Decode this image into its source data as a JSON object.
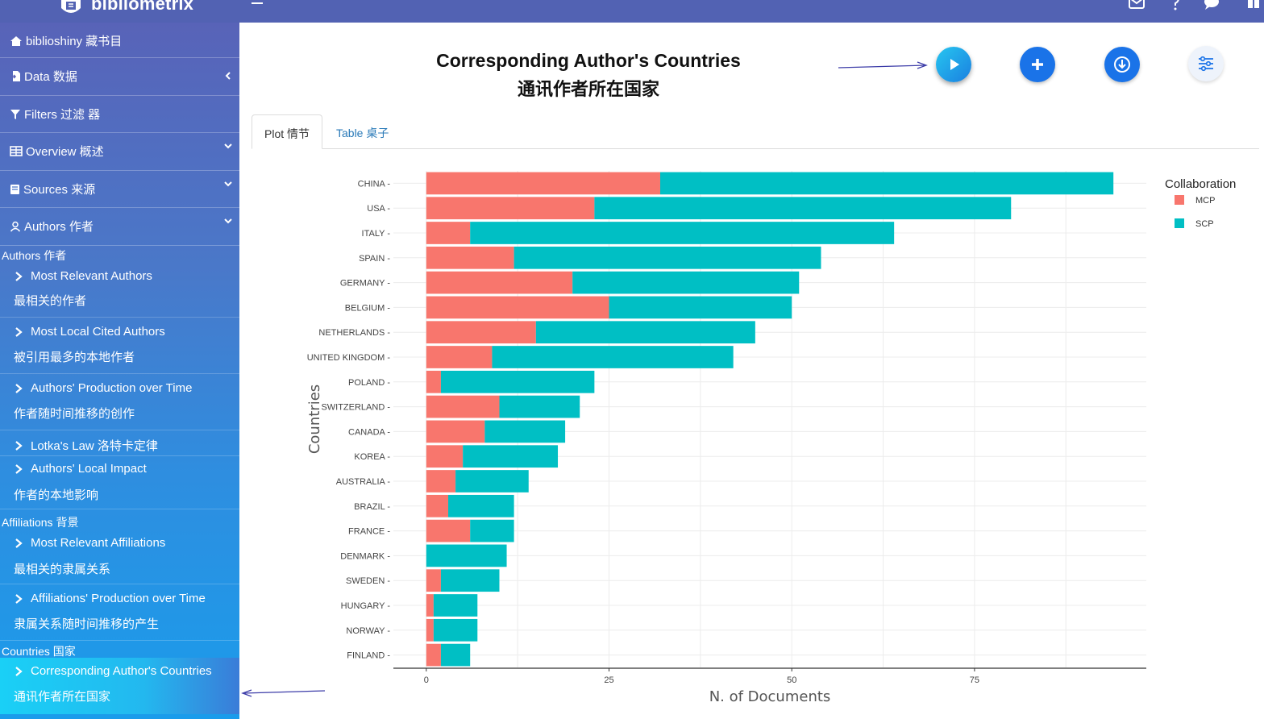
{
  "app": {
    "name": "bibliometrix"
  },
  "sidebar": {
    "items": [
      {
        "label": "biblioshiny 藏书目",
        "icon": "home-icon"
      },
      {
        "label": "Data 数据",
        "icon": "file-import-icon"
      },
      {
        "label": "Filters 过滤 器",
        "icon": "filter-icon"
      },
      {
        "label": "Overview 概述",
        "icon": "table-icon"
      },
      {
        "label": "Sources 来源",
        "icon": "book-icon"
      },
      {
        "label": "Authors 作者",
        "icon": "user-icon"
      }
    ],
    "sections": {
      "authors": "Authors  作者",
      "affiliations": "Affiliations  背景",
      "countries": "Countries  国家"
    },
    "subitems": [
      {
        "en": "Most Relevant Authors",
        "cn": "最相关的作者"
      },
      {
        "en": "Most Local Cited Authors",
        "cn": "被引用最多的本地作者"
      },
      {
        "en": "Authors' Production over Time",
        "cn": "作者随时间推移的创作"
      },
      {
        "en": "Lotka's Law  洛特卡定律",
        "cn": ""
      },
      {
        "en": "Authors' Local Impact",
        "cn": "作者的本地影响"
      },
      {
        "en": "Most Relevant Affiliations",
        "cn": "最相关的隶属关系"
      },
      {
        "en": "Affiliations' Production over Time",
        "cn": "隶属关系随时间推移的产生"
      },
      {
        "en": "Corresponding Author's Countries",
        "cn": "通讯作者所在国家"
      }
    ]
  },
  "page": {
    "title_en": "Corresponding Author's Countries",
    "title_cn": "通讯作者所在国家",
    "tabs": [
      "Plot 情节",
      "Table 桌子"
    ]
  },
  "colors": {
    "mcp": "#f8766d",
    "scp": "#00bfc4",
    "topbar": "#5262b3",
    "fab_blue": "#1a73e8"
  },
  "chart_data": {
    "type": "bar",
    "orientation": "horizontal",
    "stacked": true,
    "categories": [
      "CHINA",
      "USA",
      "ITALY",
      "SPAIN",
      "GERMANY",
      "BELGIUM",
      "NETHERLANDS",
      "UNITED KINGDOM",
      "POLAND",
      "SWITZERLAND",
      "CANADA",
      "KOREA",
      "AUSTRALIA",
      "BRAZIL",
      "FRANCE",
      "DENMARK",
      "SWEDEN",
      "HUNGARY",
      "NORWAY",
      "FINLAND"
    ],
    "series": [
      {
        "name": "MCP",
        "values": [
          32,
          23,
          6,
          12,
          20,
          25,
          15,
          9,
          2,
          10,
          8,
          5,
          4,
          3,
          6,
          0,
          2,
          1,
          1,
          2
        ]
      },
      {
        "name": "SCP",
        "values": [
          62,
          57,
          58,
          42,
          31,
          25,
          30,
          33,
          21,
          11,
          11,
          13,
          10,
          9,
          6,
          11,
          8,
          6,
          6,
          4
        ]
      }
    ],
    "xlabel": "N. of Documents",
    "ylabel": "Countries",
    "xticks": [
      0,
      25,
      50,
      75
    ],
    "xlim": [
      -4.5,
      98.5
    ],
    "legend_title": "Collaboration",
    "legend_position": "right",
    "grid": true
  }
}
